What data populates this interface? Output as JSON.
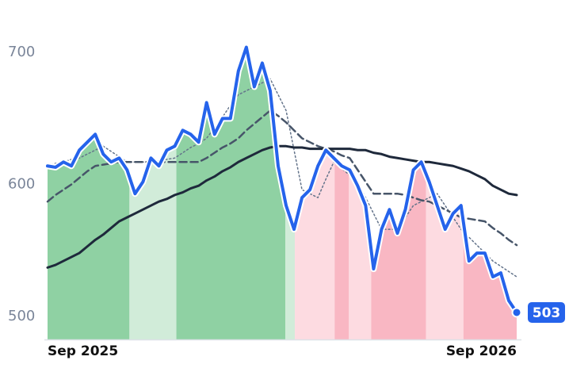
{
  "chart_data": {
    "type": "line",
    "x": [
      0,
      1,
      2,
      3,
      4,
      5,
      6,
      7,
      8,
      9,
      10,
      11,
      12,
      13,
      14,
      15,
      16,
      17,
      18,
      19,
      20,
      21,
      22,
      23,
      24,
      25,
      26,
      27,
      28,
      29,
      30,
      31,
      32,
      33,
      34,
      35,
      36,
      37,
      38,
      39,
      40,
      41,
      42,
      43,
      44,
      45,
      46,
      47,
      48,
      49,
      50,
      51,
      52,
      53,
      54,
      55,
      56,
      57,
      58,
      59
    ],
    "xlim": [
      0,
      59
    ],
    "xticks": [
      {
        "value": 0,
        "label": "Sep 2025"
      },
      {
        "value": 59,
        "label": "Sep 2026"
      }
    ],
    "ylim": [
      482,
      740
    ],
    "yticks": [
      500,
      600,
      700
    ],
    "series": [
      {
        "color": "#2563eb",
        "style": "solid",
        "width": 4,
        "values": [
          614,
          613,
          617,
          614,
          626,
          632,
          638,
          623,
          617,
          620,
          611,
          593,
          602,
          620,
          614,
          626,
          629,
          641,
          638,
          632,
          662,
          638,
          650,
          650,
          686,
          704,
          674,
          692,
          671,
          614,
          584,
          566,
          590,
          596,
          614,
          626,
          620,
          614,
          611,
          599,
          584,
          536,
          566,
          581,
          563,
          581,
          611,
          617,
          602,
          584,
          566,
          578,
          584,
          542,
          548,
          548,
          530,
          533,
          512,
          503
        ]
      },
      {
        "color": "#1e293b",
        "style": "solid",
        "width": 3,
        "values": [
          537,
          539,
          542,
          545,
          548,
          553,
          558,
          562,
          567,
          572,
          575,
          578,
          581,
          584,
          587,
          589,
          592,
          594,
          597,
          599,
          603,
          606,
          610,
          613,
          617,
          620,
          623,
          626,
          628,
          629,
          629,
          628,
          628,
          627,
          627,
          627,
          627,
          627,
          627,
          626,
          626,
          624,
          623,
          621,
          620,
          619,
          618,
          617,
          617,
          616,
          615,
          614,
          612,
          610,
          607,
          604,
          599,
          596,
          593,
          592
        ]
      },
      {
        "color": "#475569",
        "style": "dashed",
        "width": 2.5,
        "values": [
          587,
          592,
          596,
          600,
          605,
          610,
          614,
          615,
          616,
          617,
          617,
          617,
          617,
          617,
          617,
          617,
          617,
          617,
          617,
          617,
          620,
          624,
          628,
          631,
          635,
          641,
          646,
          651,
          656,
          652,
          647,
          641,
          635,
          632,
          629,
          627,
          625,
          622,
          620,
          611,
          602,
          593,
          593,
          593,
          593,
          592,
          590,
          588,
          587,
          584,
          581,
          578,
          575,
          574,
          573,
          572,
          567,
          563,
          558,
          554
        ]
      },
      {
        "color": "#64748b",
        "style": "dotted",
        "width": 1.5,
        "values": [
          614,
          616,
          617,
          619,
          620,
          623,
          626,
          629,
          625,
          621,
          617,
          617,
          617,
          617,
          618,
          619,
          620,
          624,
          628,
          631,
          635,
          643,
          651,
          660,
          668,
          671,
          674,
          677,
          680,
          668,
          656,
          626,
          596,
          593,
          590,
          604,
          617,
          612,
          607,
          602,
          590,
          578,
          566,
          566,
          566,
          575,
          584,
          587,
          590,
          593,
          584,
          575,
          566,
          560,
          554,
          548,
          542,
          538,
          534,
          530
        ]
      }
    ],
    "regions": [
      {
        "start": 0,
        "end": 10.3,
        "color": "#8fd1a3"
      },
      {
        "start": 10.3,
        "end": 16.2,
        "color": "#d1ecd9"
      },
      {
        "start": 16.2,
        "end": 29.9,
        "color": "#8fd1a3"
      },
      {
        "start": 29.9,
        "end": 31.1,
        "color": "#d1ecd9"
      },
      {
        "start": 31.1,
        "end": 36.1,
        "color": "#fddbe1"
      },
      {
        "start": 36.1,
        "end": 37.9,
        "color": "#f9b7c3"
      },
      {
        "start": 37.9,
        "end": 40.7,
        "color": "#fddbe1"
      },
      {
        "start": 40.7,
        "end": 47.6,
        "color": "#f9b7c3"
      },
      {
        "start": 47.6,
        "end": 52.3,
        "color": "#fddbe1"
      },
      {
        "start": 52.3,
        "end": 59,
        "color": "#f9b7c3"
      }
    ]
  }
}
